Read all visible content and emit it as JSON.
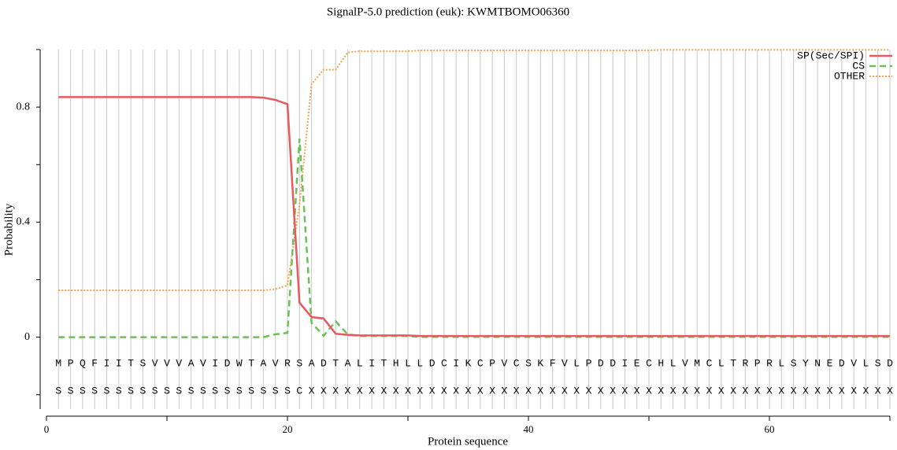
{
  "chart_data": {
    "type": "line",
    "title": "SignalP-5.0 prediction (euk):  KWMTBOMO06360",
    "xlabel": "Protein sequence",
    "ylabel": "Probability",
    "x": [
      1,
      2,
      3,
      4,
      5,
      6,
      7,
      8,
      9,
      10,
      11,
      12,
      13,
      14,
      15,
      16,
      17,
      18,
      19,
      20,
      21,
      22,
      23,
      24,
      25,
      26,
      27,
      28,
      29,
      30,
      31,
      32,
      33,
      34,
      35,
      36,
      37,
      38,
      39,
      40,
      41,
      42,
      43,
      44,
      45,
      46,
      47,
      48,
      49,
      50,
      51,
      52,
      53,
      54,
      55,
      56,
      57,
      58,
      59,
      60,
      61,
      62,
      63,
      64,
      65,
      66,
      67,
      68,
      69,
      70
    ],
    "sequence": [
      "M",
      "P",
      "Q",
      "F",
      "I",
      "I",
      "T",
      "S",
      "V",
      "V",
      "V",
      "A",
      "V",
      "I",
      "D",
      "W",
      "T",
      "A",
      "V",
      "R",
      "S",
      "A",
      "D",
      "T",
      "A",
      "L",
      "I",
      "T",
      "H",
      "L",
      "L",
      "D",
      "C",
      "I",
      "K",
      "C",
      "P",
      "V",
      "C",
      "S",
      "K",
      "F",
      "V",
      "L",
      "P",
      "D",
      "D",
      "I",
      "E",
      "C",
      "H",
      "L",
      "V",
      "M",
      "C",
      "L",
      "T",
      "R",
      "P",
      "R",
      "L",
      "S",
      "Y",
      "N",
      "E",
      "D",
      "V",
      "L",
      "S",
      "D"
    ],
    "annotation": [
      "S",
      "S",
      "S",
      "S",
      "S",
      "S",
      "S",
      "S",
      "S",
      "S",
      "S",
      "S",
      "S",
      "S",
      "S",
      "S",
      "S",
      "S",
      "S",
      "S",
      "C",
      "X",
      "X",
      "X",
      "X",
      "X",
      "X",
      "X",
      "X",
      "X",
      "X",
      "X",
      "X",
      "X",
      "X",
      "X",
      "X",
      "X",
      "X",
      "X",
      "X",
      "X",
      "X",
      "X",
      "X",
      "X",
      "X",
      "X",
      "X",
      "X",
      "X",
      "X",
      "X",
      "X",
      "X",
      "X",
      "X",
      "X",
      "X",
      "X",
      "X",
      "X",
      "X",
      "X",
      "X",
      "X",
      "X",
      "X",
      "X",
      "X"
    ],
    "series": [
      {
        "name": "SP(Sec/SPI)",
        "color": "#e8595f",
        "style": "solid",
        "values": [
          0.835,
          0.835,
          0.835,
          0.835,
          0.835,
          0.835,
          0.835,
          0.835,
          0.835,
          0.835,
          0.835,
          0.835,
          0.835,
          0.835,
          0.835,
          0.835,
          0.835,
          0.833,
          0.825,
          0.81,
          0.12,
          0.07,
          0.065,
          0.012,
          0.008,
          0.006,
          0.006,
          0.006,
          0.006,
          0.006,
          0.004,
          0.004,
          0.004,
          0.004,
          0.004,
          0.004,
          0.004,
          0.004,
          0.004,
          0.004,
          0.004,
          0.004,
          0.004,
          0.004,
          0.004,
          0.004,
          0.004,
          0.004,
          0.004,
          0.004,
          0.004,
          0.004,
          0.004,
          0.004,
          0.004,
          0.004,
          0.004,
          0.004,
          0.004,
          0.004,
          0.004,
          0.004,
          0.004,
          0.004,
          0.004,
          0.004,
          0.004,
          0.004,
          0.004,
          0.004
        ]
      },
      {
        "name": "CS",
        "color": "#6dbf5a",
        "style": "dashed",
        "values": [
          0,
          0,
          0,
          0,
          0,
          0,
          0,
          0,
          0,
          0,
          0,
          0,
          0,
          0,
          0,
          0,
          0,
          0,
          0.01,
          0.015,
          0.69,
          0.05,
          0.005,
          0.055,
          0.01,
          0.004,
          0.004,
          0.004,
          0.004,
          0.004,
          0.001,
          0.001,
          0.001,
          0.001,
          0.001,
          0.001,
          0.001,
          0.001,
          0.001,
          0.001,
          0.001,
          0.001,
          0.001,
          0.001,
          0.001,
          0.001,
          0.001,
          0.001,
          0.001,
          0.001,
          0.001,
          0.001,
          0.001,
          0.001,
          0.001,
          0.001,
          0.001,
          0.001,
          0.001,
          0.001,
          0.001,
          0.001,
          0.001,
          0.001,
          0.001,
          0.001,
          0.001,
          0.001,
          0.001,
          0.001
        ]
      },
      {
        "name": "OTHER",
        "color": "#f5a34f",
        "style": "dotted",
        "values": [
          0.163,
          0.163,
          0.163,
          0.163,
          0.163,
          0.163,
          0.163,
          0.163,
          0.163,
          0.163,
          0.163,
          0.163,
          0.163,
          0.163,
          0.163,
          0.163,
          0.163,
          0.163,
          0.167,
          0.18,
          0.46,
          0.88,
          0.93,
          0.93,
          0.99,
          0.994,
          0.994,
          0.994,
          0.994,
          0.994,
          0.997,
          0.997,
          0.997,
          0.997,
          0.997,
          0.997,
          0.997,
          0.997,
          0.997,
          0.997,
          0.997,
          0.997,
          0.997,
          0.997,
          0.997,
          0.997,
          0.997,
          0.997,
          0.997,
          0.997,
          0.999,
          0.999,
          0.999,
          0.999,
          0.999,
          0.999,
          0.999,
          0.999,
          0.999,
          0.999,
          0.999,
          0.999,
          0.999,
          0.999,
          0.999,
          0.999,
          0.999,
          0.999,
          0.999,
          0.999
        ]
      }
    ],
    "xlim": [
      0,
      70
    ],
    "xticks": [
      0,
      20,
      40,
      60
    ],
    "xminorticks": [
      10,
      30,
      50,
      70
    ],
    "ylim": [
      -0.25,
      1.0
    ],
    "yticks": [
      0,
      0.4,
      0.8
    ],
    "yminorticks": [
      -0.2,
      0.2,
      0.6,
      1.0
    ],
    "grid": true,
    "legend": "upper right"
  }
}
